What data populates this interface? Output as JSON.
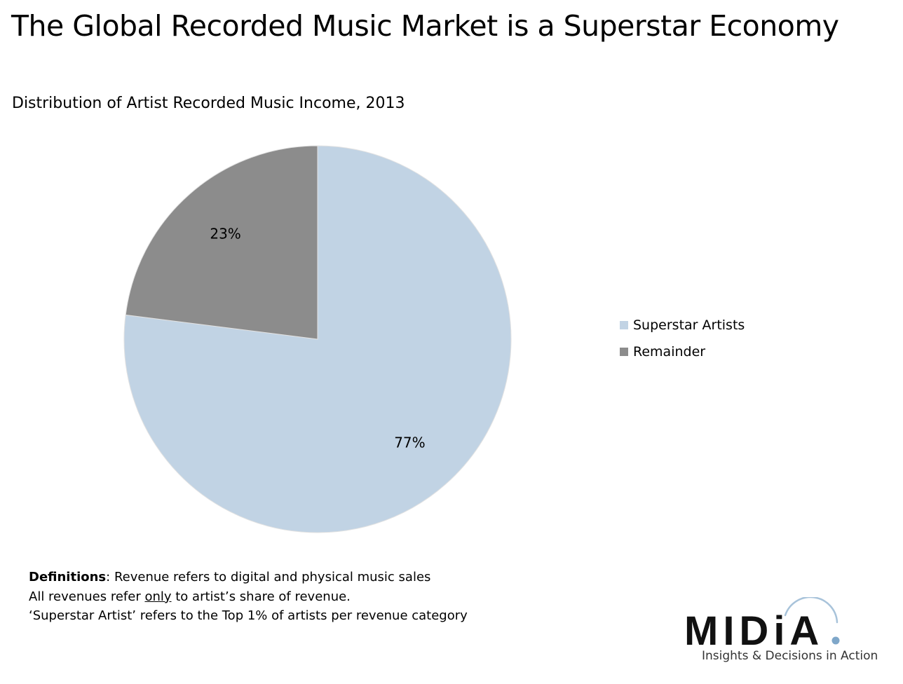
{
  "chart_data": {
    "type": "pie",
    "title": "The Global Recorded Music Market is a Superstar Economy",
    "subtitle": "Distribution of Artist Recorded Music Income, 2013",
    "slices": [
      {
        "name": "Superstar Artists",
        "value": 77,
        "label": "77%",
        "color": "#c1d3e4"
      },
      {
        "name": "Remainder",
        "value": 23,
        "label": "23%",
        "color": "#8c8c8c"
      }
    ],
    "legend_position": "right"
  },
  "notes": {
    "def_bold": "Definitions",
    "def_rest": ": Revenue refers to digital and physical music sales",
    "line2_pre": "All revenues refer ",
    "line2_underlined": "only",
    "line2_post": " to artist’s share of revenue.",
    "line3": "‘Superstar Artist’ refers to the Top 1% of artists per revenue category"
  },
  "logo": {
    "wordmark": "MIDiA",
    "tagline": "Insights & Decisions in Action",
    "accent_color": "#7fa7c9"
  }
}
